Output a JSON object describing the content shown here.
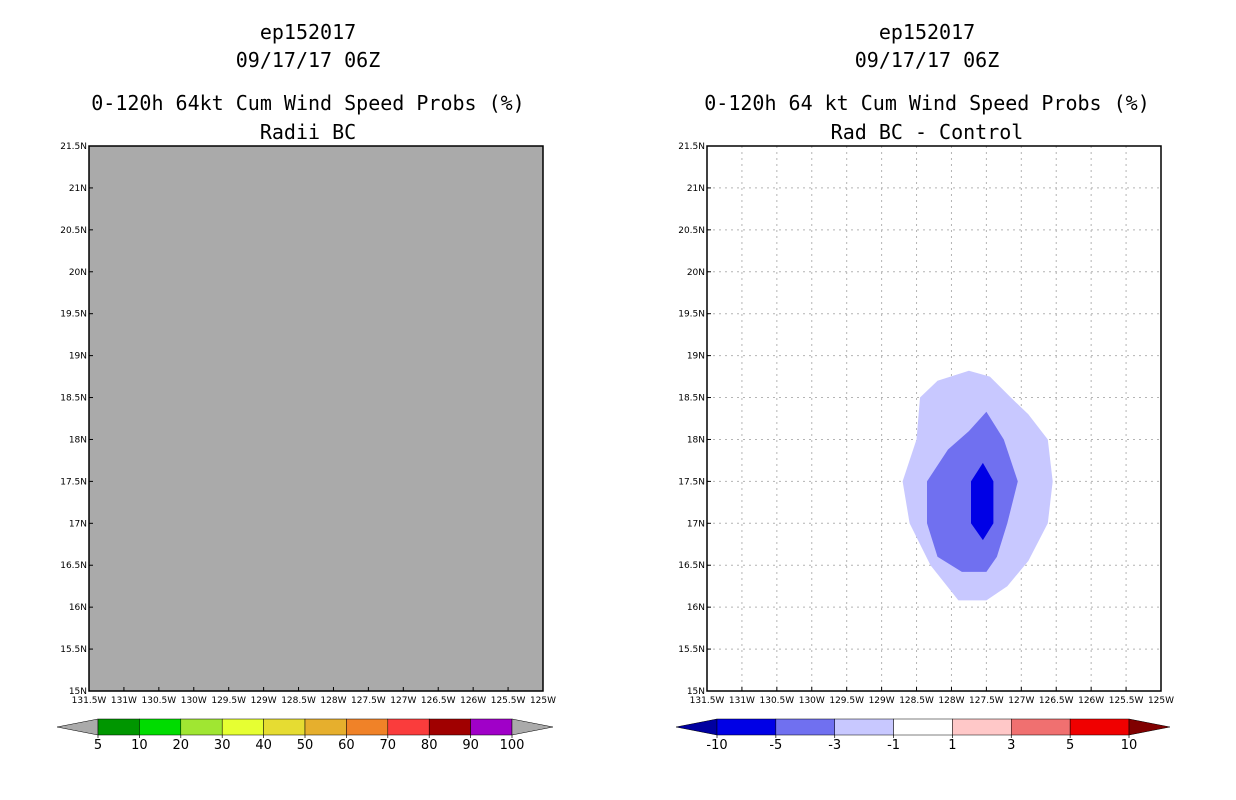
{
  "left_panel": {
    "storm_id": "ep152017",
    "datetime": "09/17/17 06Z",
    "title": "0-120h 64kt Cum Wind Speed Probs (%)",
    "subtitle": "Radii BC"
  },
  "right_panel": {
    "storm_id": "ep152017",
    "datetime": "09/17/17 06Z",
    "title": "0-120h 64 kt Cum Wind Speed Probs (%)",
    "subtitle": "Rad BC - Control"
  },
  "chart_data": [
    {
      "type": "heatmap",
      "title": "0-120h 64kt Cum Wind Speed Probs (%) — Radii BC",
      "x_ticks": [
        "131.5W",
        "131W",
        "130.5W",
        "130W",
        "129.5W",
        "129W",
        "128.5W",
        "128W",
        "127.5W",
        "127W",
        "126.5W",
        "126W",
        "125.5W",
        "125W"
      ],
      "y_ticks": [
        "15N",
        "15.5N",
        "16N",
        "16.5N",
        "17N",
        "17.5N",
        "18N",
        "18.5N",
        "19N",
        "19.5N",
        "20N",
        "20.5N",
        "21N",
        "21.5N"
      ],
      "xlim": [
        -131.5,
        -125.0
      ],
      "ylim": [
        15.0,
        21.5
      ],
      "grid": false,
      "fill": "#aaaaaa",
      "colorbar": {
        "labels": [
          "5",
          "10",
          "20",
          "30",
          "40",
          "50",
          "60",
          "70",
          "80",
          "90",
          "100"
        ],
        "colors": [
          "#aaaaaa",
          "#009600",
          "#00dc00",
          "#a0e632",
          "#e6ff32",
          "#e6dc32",
          "#e6af2d",
          "#f08228",
          "#fa3c3c",
          "#a00000",
          "#a000c8",
          "#aaaaaa"
        ]
      }
    },
    {
      "type": "heatmap",
      "title": "0-120h 64 kt Cum Wind Speed Probs (%) — Rad BC - Control",
      "x_ticks": [
        "131.5W",
        "131W",
        "130.5W",
        "130W",
        "129.5W",
        "129W",
        "128.5W",
        "128W",
        "127.5W",
        "127W",
        "126.5W",
        "126W",
        "125.5W",
        "125W"
      ],
      "y_ticks": [
        "15N",
        "15.5N",
        "16N",
        "16.5N",
        "17N",
        "17.5N",
        "18N",
        "18.5N",
        "19N",
        "19.5N",
        "20N",
        "20.5N",
        "21N",
        "21.5N"
      ],
      "xlim": [
        -131.5,
        -125.0
      ],
      "ylim": [
        15.0,
        21.5
      ],
      "grid": true,
      "contours": [
        {
          "range": "-3 to -1",
          "color": "#c8c8ff",
          "points": [
            [
              -128.45,
              18.5
            ],
            [
              -128.2,
              18.7
            ],
            [
              -127.75,
              18.82
            ],
            [
              -127.45,
              18.75
            ],
            [
              -127.15,
              18.5
            ],
            [
              -126.9,
              18.3
            ],
            [
              -126.62,
              18.0
            ],
            [
              -126.55,
              17.5
            ],
            [
              -126.62,
              17.0
            ],
            [
              -126.9,
              16.55
            ],
            [
              -127.2,
              16.25
            ],
            [
              -127.5,
              16.08
            ],
            [
              -127.9,
              16.08
            ],
            [
              -128.3,
              16.5
            ],
            [
              -128.6,
              17.0
            ],
            [
              -128.7,
              17.5
            ],
            [
              -128.5,
              18.0
            ]
          ]
        },
        {
          "range": "-5 to -3",
          "color": "#7070f0",
          "points": [
            [
              -128.35,
              17.5
            ],
            [
              -128.05,
              17.88
            ],
            [
              -127.75,
              18.1
            ],
            [
              -127.5,
              18.33
            ],
            [
              -127.25,
              18.0
            ],
            [
              -127.05,
              17.5
            ],
            [
              -127.2,
              17.0
            ],
            [
              -127.35,
              16.6
            ],
            [
              -127.5,
              16.42
            ],
            [
              -127.85,
              16.42
            ],
            [
              -128.2,
              16.6
            ],
            [
              -128.35,
              17.0
            ]
          ]
        },
        {
          "range": "-10 to -5",
          "color": "#0000e6",
          "points": [
            [
              -127.72,
              17.0
            ],
            [
              -127.72,
              17.5
            ],
            [
              -127.55,
              17.72
            ],
            [
              -127.4,
              17.5
            ],
            [
              -127.4,
              17.0
            ],
            [
              -127.55,
              16.8
            ]
          ]
        }
      ],
      "colorbar": {
        "labels": [
          "-10",
          "-5",
          "-3",
          "-1",
          "1",
          "3",
          "5",
          "10"
        ],
        "colors": [
          "#0000a0",
          "#0000e6",
          "#7070f0",
          "#c8c8ff",
          "#ffffff",
          "#ffc8c8",
          "#f07070",
          "#f00000",
          "#800000"
        ]
      }
    }
  ]
}
